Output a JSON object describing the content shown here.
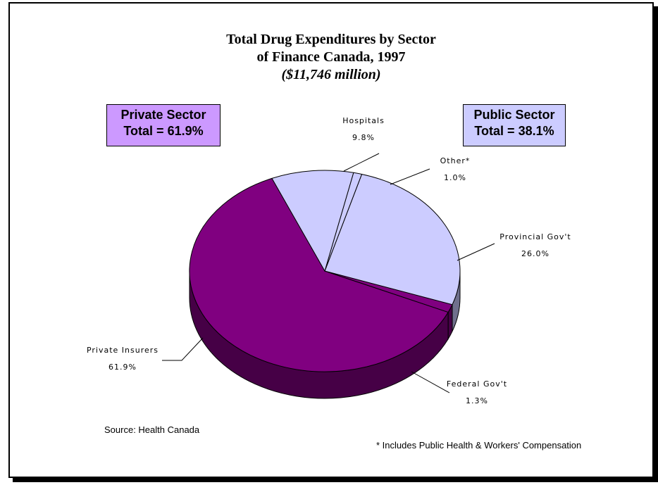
{
  "chart_data": {
    "type": "pie",
    "title_lines": [
      "Total Drug Expenditures by Sector",
      "of Finance Canada, 1997"
    ],
    "subtitle": "($11,746 million)",
    "slices": [
      {
        "name": "Private Insurers",
        "value": 61.9,
        "label": "61.9%",
        "color": "#800080"
      },
      {
        "name": "Hospitals",
        "value": 9.8,
        "label": "9.8%",
        "color": "#ccccff"
      },
      {
        "name": "Other*",
        "value": 1.0,
        "label": "1.0%",
        "color": "#ccccff"
      },
      {
        "name": "Provincial Gov't",
        "value": 26.0,
        "label": "26.0%",
        "color": "#ccccff"
      },
      {
        "name": "Federal Gov't",
        "value": 1.3,
        "label": "1.3%",
        "color": "#800080"
      }
    ],
    "callouts": {
      "private": {
        "line1": "Private Sector",
        "line2": "Total = 61.9%",
        "color": "#cc99ff"
      },
      "public": {
        "line1": "Public Sector",
        "line2": "Total = 38.1%",
        "color": "#ccccff"
      }
    },
    "source": "Source: Health Canada",
    "footnote": "* Includes Public Health & Workers' Compensation"
  }
}
